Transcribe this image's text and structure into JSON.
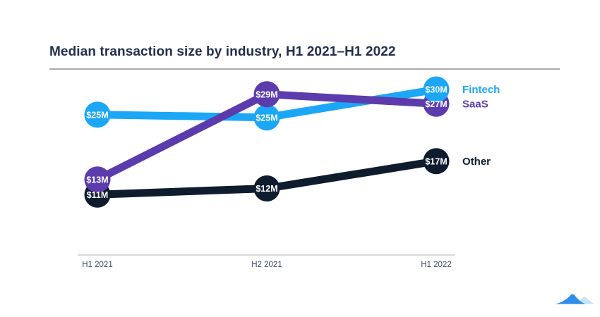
{
  "title": "Median transaction size by industry, H1 2021–H1 2022",
  "colors": {
    "fintech": "#1BA7F6",
    "saas": "#5C3CAD",
    "other": "#0E1C2E",
    "title_text": "#232E4D",
    "divider": "#ABABAB",
    "axis_line": "#C8CBD2",
    "axis_text": "#3D4765",
    "point_label_text": "#FFFFFF",
    "logo_main": "#2E8EE9",
    "logo_light": "#C9E3F5"
  },
  "chart_data": {
    "type": "line",
    "title": "Median transaction size by industry, H1 2021–H1 2022",
    "categories": [
      "H1 2021",
      "H2 2021",
      "H1 2022"
    ],
    "series": [
      {
        "name": "Fintech",
        "color_key": "fintech",
        "values": [
          25,
          25,
          30
        ],
        "labels": [
          "$25M",
          "$25M",
          "$30M"
        ]
      },
      {
        "name": "SaaS",
        "color_key": "saas",
        "values": [
          13,
          29,
          27
        ],
        "labels": [
          "$13M",
          "$29M",
          "$27M"
        ]
      },
      {
        "name": "Other",
        "color_key": "other",
        "values": [
          11,
          12,
          17
        ],
        "labels": [
          "$11M",
          "$12M",
          "$17M"
        ]
      }
    ],
    "unit_format": "$M",
    "ylim": [
      11,
      30
    ],
    "grid": false,
    "legend_position": "right-of-last-point",
    "marker": "filled-circle-with-value-label"
  },
  "logo": {
    "icon": "mountain-wave-logo"
  }
}
